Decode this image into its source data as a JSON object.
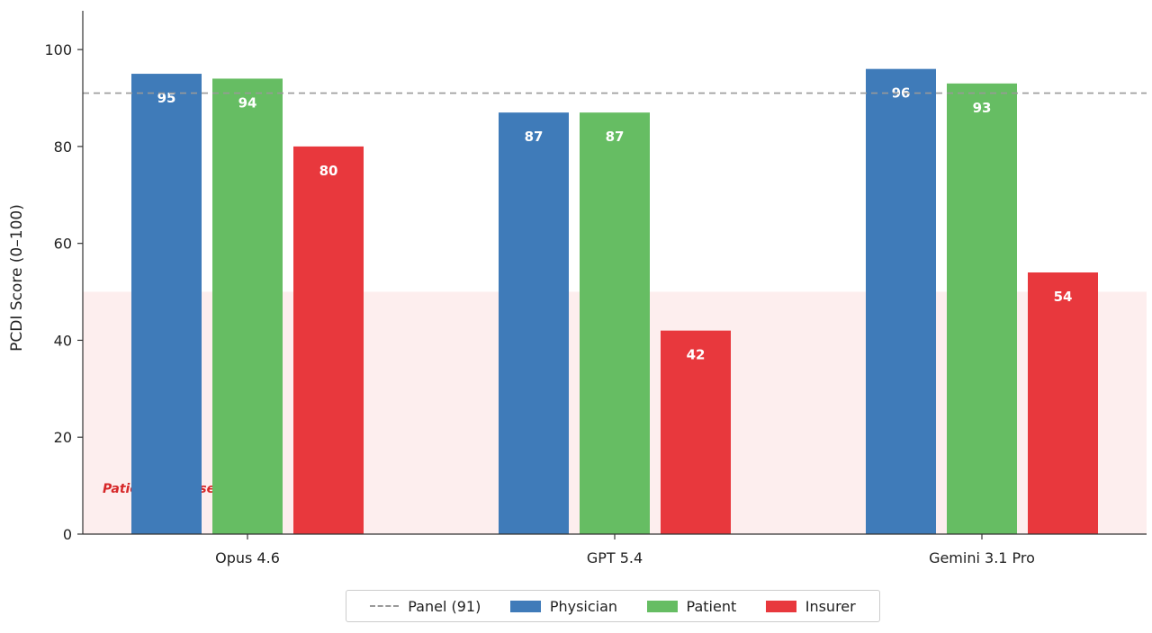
{
  "chart_data": {
    "type": "bar",
    "title": "",
    "xlabel": "",
    "ylabel": "PCDI Score (0–100)",
    "ylim": [
      0,
      108
    ],
    "yticks": [
      0,
      20,
      40,
      60,
      80,
      100
    ],
    "categories": [
      "Opus 4.6",
      "GPT 5.4",
      "Gemini 3.1 Pro"
    ],
    "series": [
      {
        "name": "Physician",
        "color": "#3f7bb9",
        "values": [
          95,
          87,
          96
        ],
        "labels": [
          "95",
          "87",
          "96"
        ]
      },
      {
        "name": "Patient",
        "color": "#66bd63",
        "values": [
          94,
          87,
          93
        ],
        "labels": [
          "94",
          "87",
          "93"
        ]
      },
      {
        "name": "Insurer",
        "color": "#e8383d",
        "values": [
          80,
          42,
          54
        ],
        "labels": [
          "80",
          "42",
          "54"
        ]
      }
    ],
    "reference_line": {
      "label": "Panel (91)",
      "value": 91,
      "color": "#999999"
    },
    "shaded_zone": {
      "label": "Patient-adverse zone",
      "from": 0,
      "to": 50,
      "color": "#fdeeee"
    },
    "grid": false,
    "legend_position": "bottom-center"
  }
}
